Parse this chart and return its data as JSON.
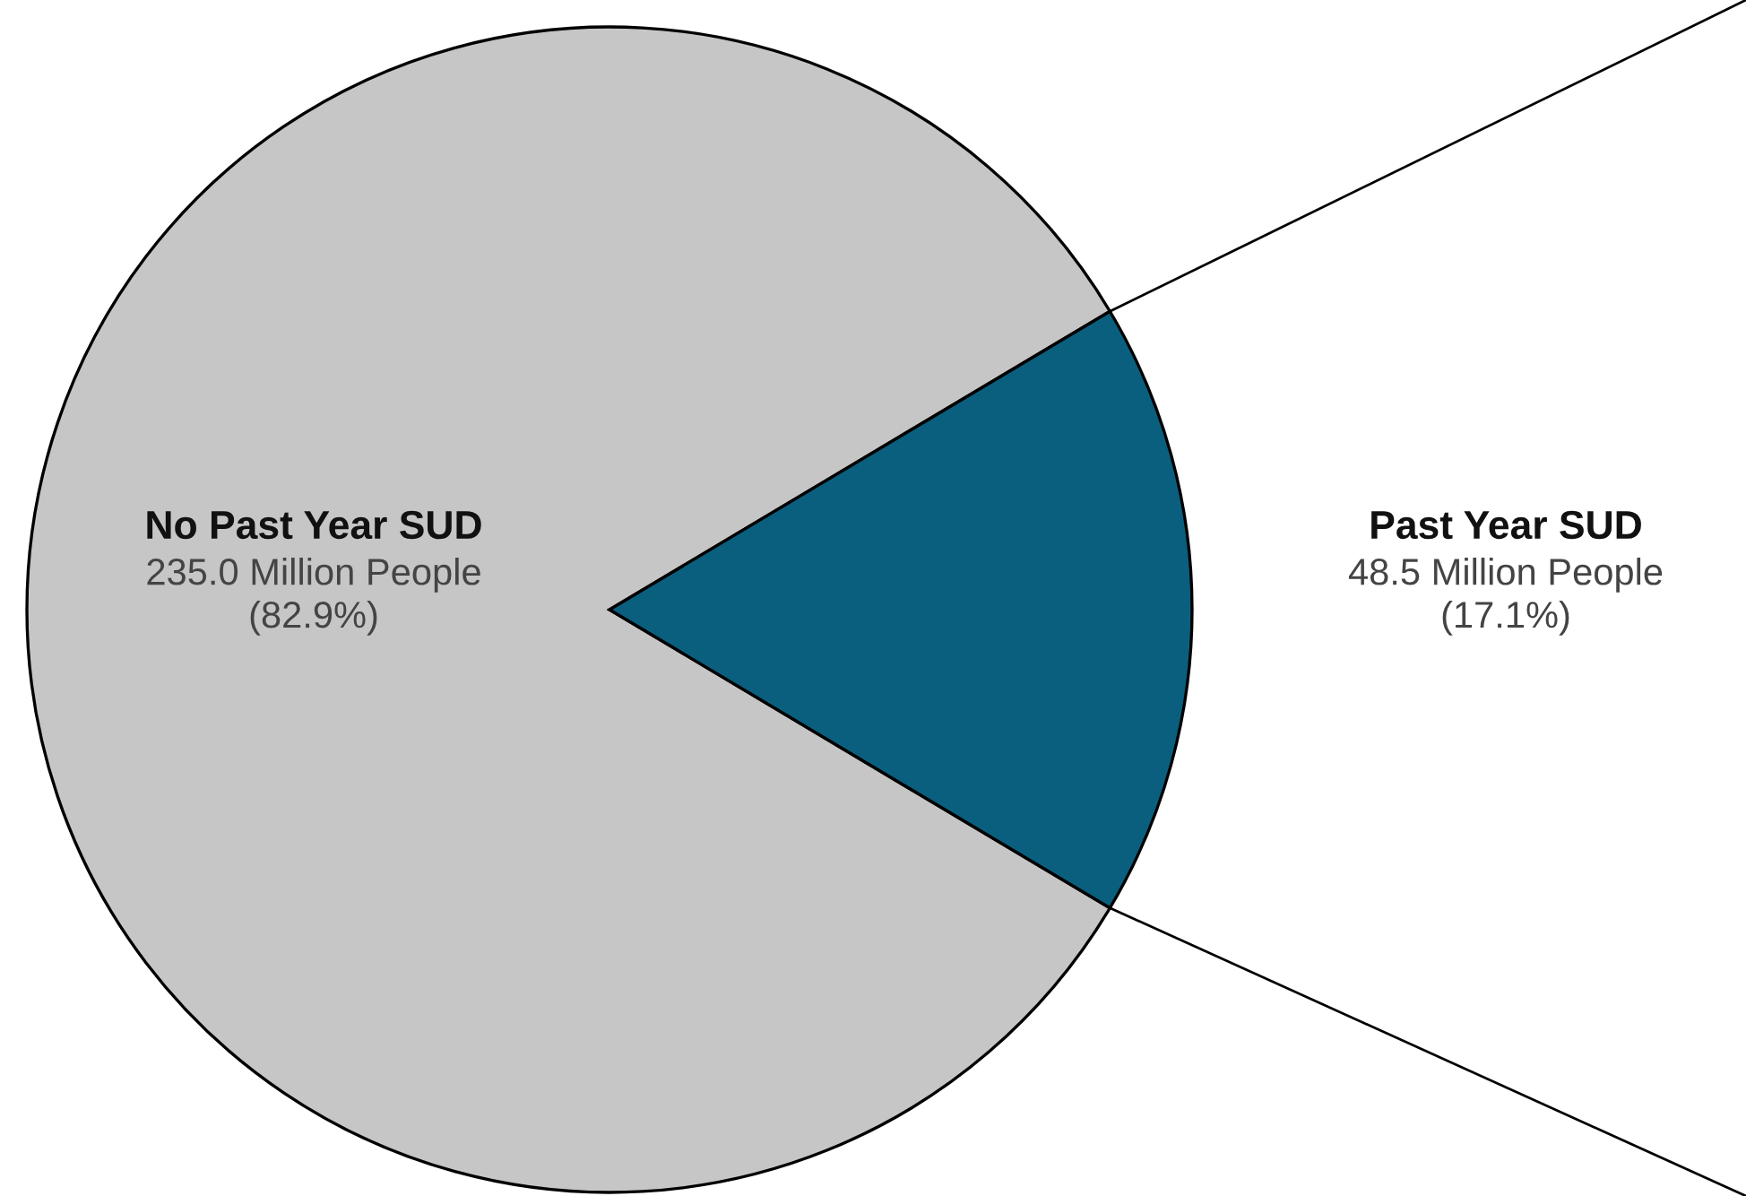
{
  "chart_data": {
    "type": "pie",
    "categories": [
      "No Past Year SUD",
      "Past Year SUD"
    ],
    "values": [
      235.0,
      48.5
    ],
    "value_labels": [
      "235.0 Million People\n(82.9%)",
      "48.5 Million People\n(17.1%)"
    ],
    "colors": [
      "#c6c6c6",
      "#0b5f7e"
    ],
    "legend": false
  }
}
